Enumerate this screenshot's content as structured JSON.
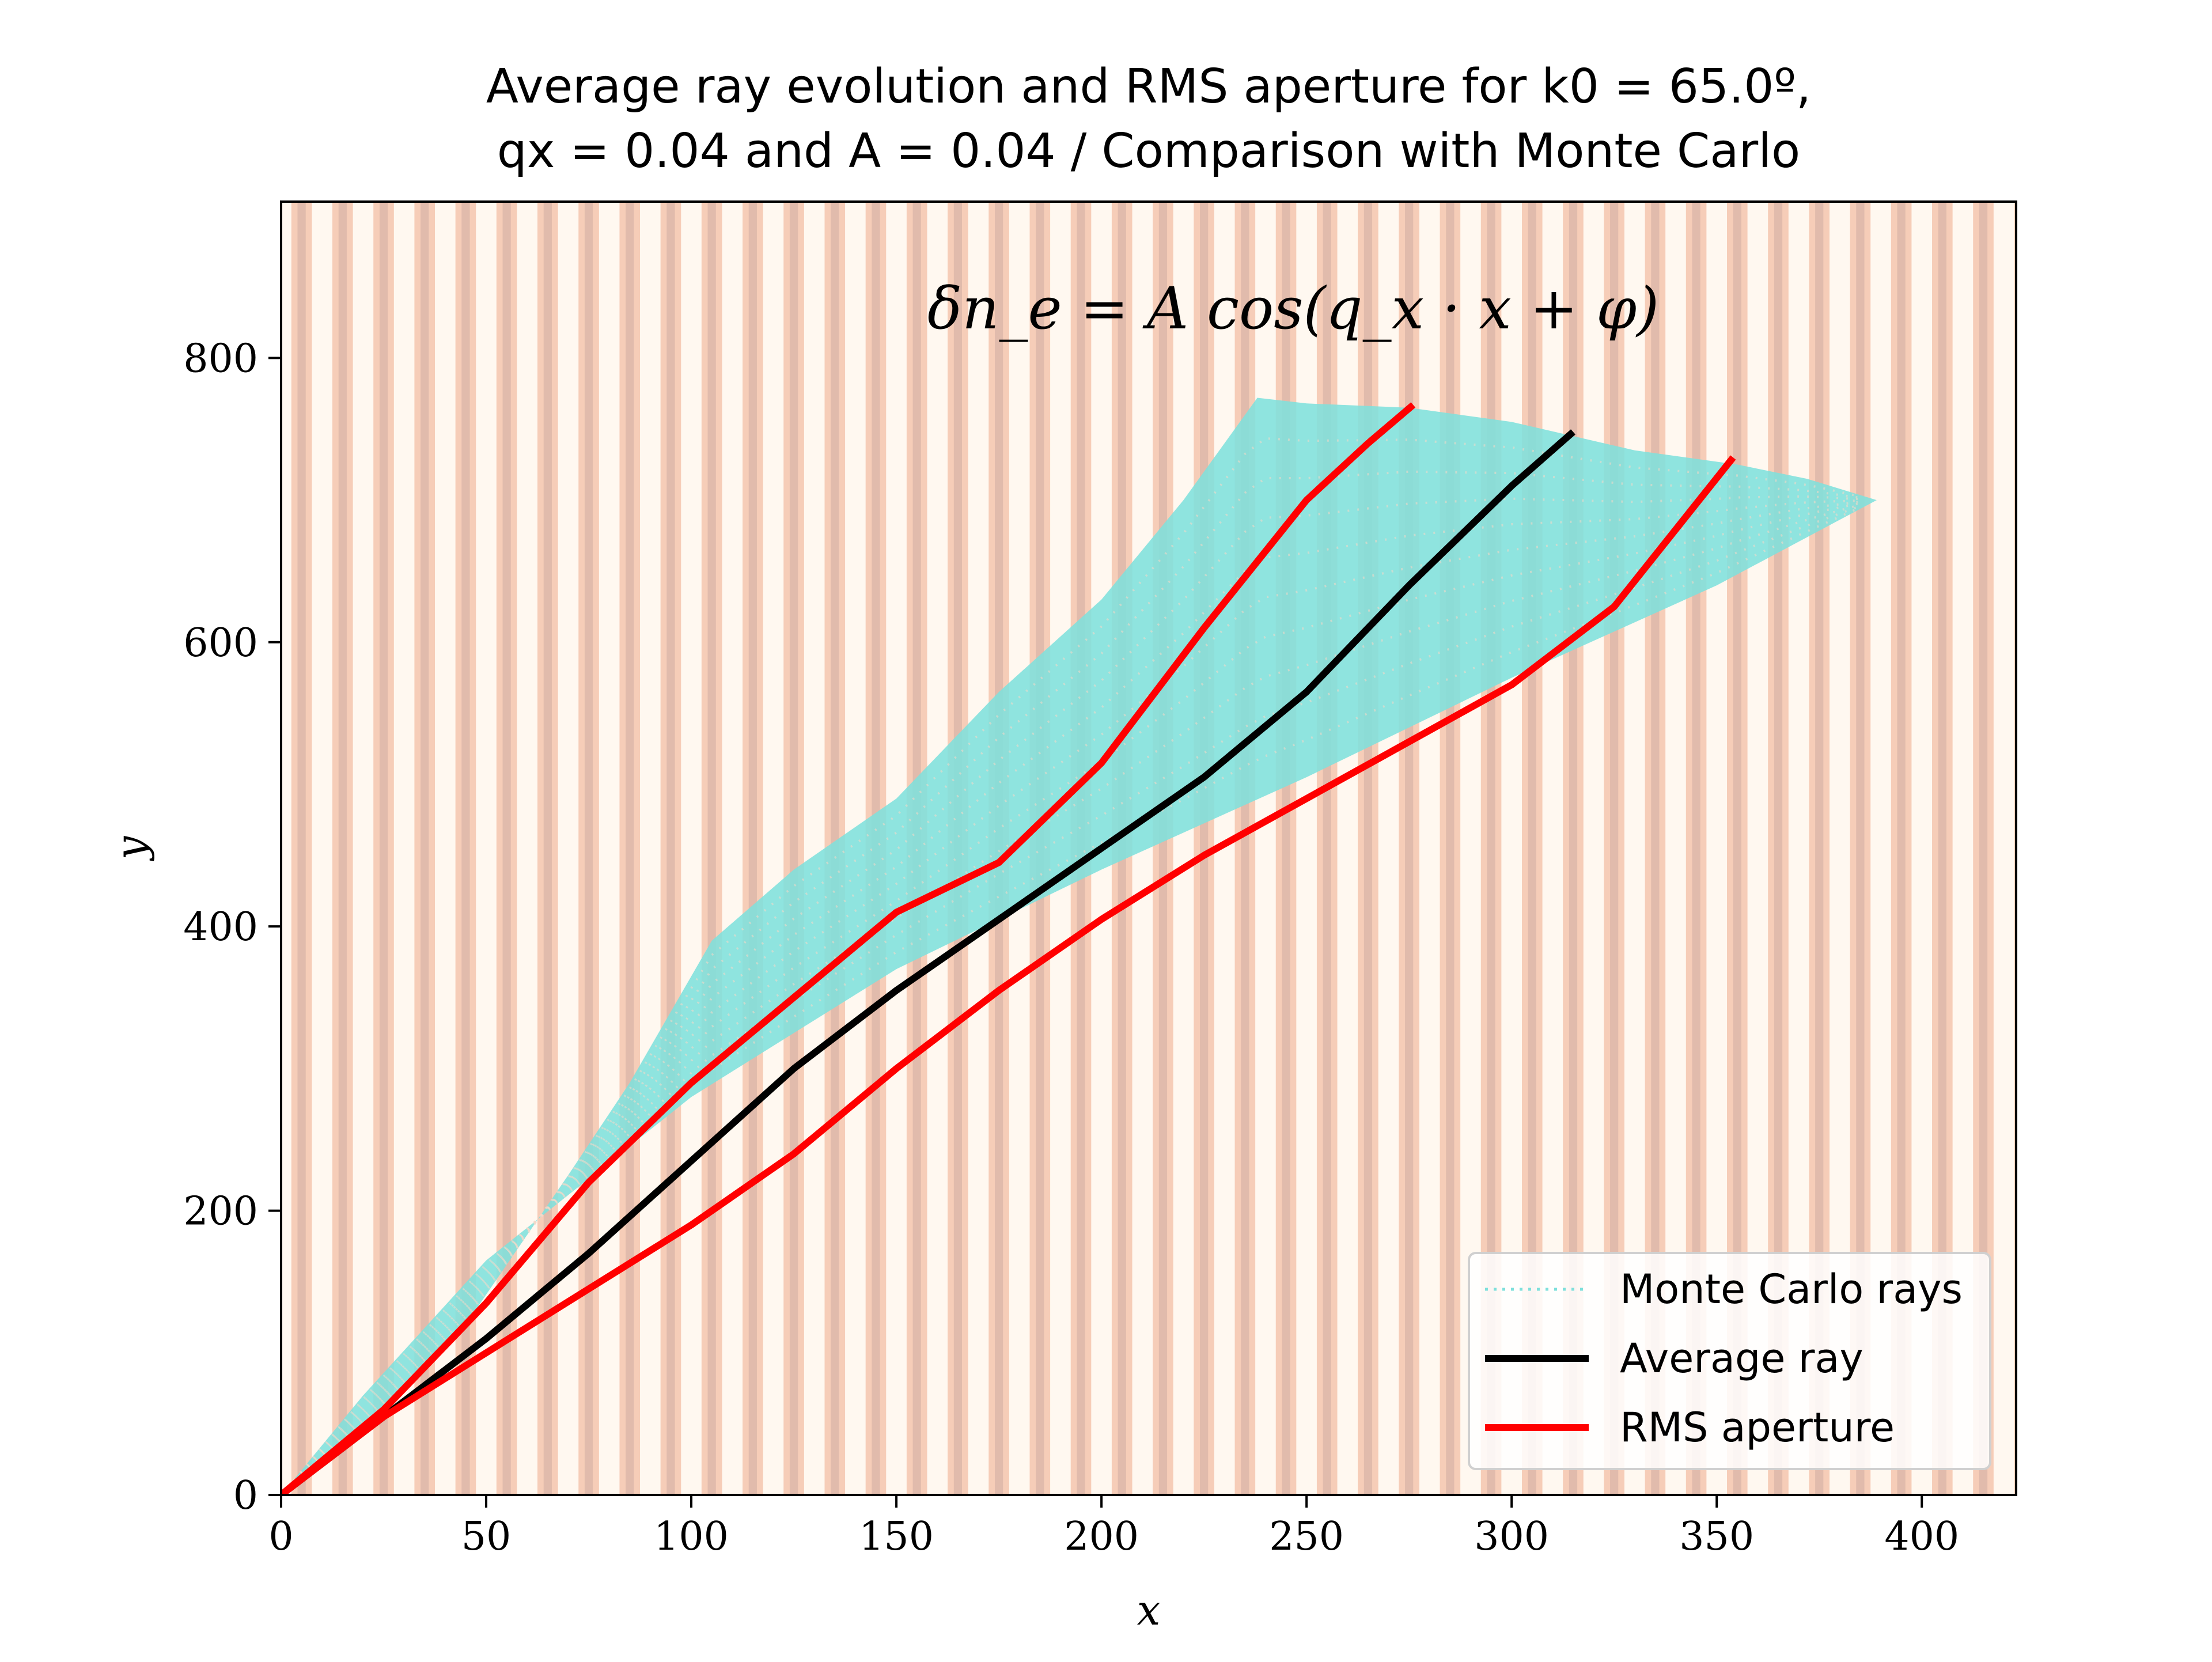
{
  "chart_data": {
    "type": "line",
    "title_line1": "Average ray evolution and RMS aperture for k0 = 65.0º,",
    "title_line2": "qx = 0.04 and A = 0.04 / Comparison with Monte Carlo",
    "annotation": "δn_e = A cos(q_x · x + φ)",
    "xlabel": "x",
    "ylabel": "y",
    "xlim": [
      0,
      423
    ],
    "ylim": [
      0,
      910
    ],
    "xticks": [
      0,
      50,
      100,
      150,
      200,
      250,
      300,
      350,
      400
    ],
    "yticks": [
      0,
      200,
      400,
      600,
      800
    ],
    "grid": false,
    "legend_position": "lower-right",
    "background": {
      "type": "stripes",
      "period_x": 10,
      "colors": [
        "#fff8f0",
        "#f6cdb8",
        "#d9b3a6"
      ]
    },
    "series": [
      {
        "name": "Monte Carlo rays",
        "style": "dotted",
        "color": "#7fe0dc",
        "envelope_upper": [
          [
            0,
            0
          ],
          [
            20,
            45
          ],
          [
            45,
            120
          ],
          [
            70,
            225
          ],
          [
            85,
            290
          ],
          [
            105,
            390
          ],
          [
            125,
            440
          ],
          [
            150,
            490
          ],
          [
            175,
            565
          ],
          [
            200,
            630
          ],
          [
            220,
            700
          ],
          [
            238,
            772
          ],
          [
            250,
            768
          ],
          [
            275,
            765
          ],
          [
            300,
            755
          ],
          [
            330,
            735
          ],
          [
            355,
            725
          ],
          [
            372,
            715
          ],
          [
            389,
            700
          ]
        ],
        "envelope_lower": [
          [
            389,
            700
          ],
          [
            350,
            640
          ],
          [
            300,
            575
          ],
          [
            250,
            505
          ],
          [
            200,
            440
          ],
          [
            150,
            370
          ],
          [
            100,
            280
          ],
          [
            50,
            165
          ],
          [
            20,
            70
          ],
          [
            0,
            0
          ]
        ]
      },
      {
        "name": "Average ray",
        "style": "solid",
        "color": "#000000",
        "x": [
          0,
          25,
          50,
          75,
          100,
          125,
          150,
          175,
          200,
          225,
          250,
          275,
          300,
          315
        ],
        "y": [
          0,
          55,
          110,
          170,
          235,
          300,
          355,
          405,
          455,
          505,
          565,
          640,
          710,
          748
        ]
      },
      {
        "name": "RMS aperture",
        "style": "solid",
        "color": "#ff0000",
        "x": [
          0,
          25,
          50,
          75,
          100,
          125,
          150,
          175,
          200,
          225,
          250,
          265,
          276
        ],
        "y": [
          0,
          60,
          135,
          220,
          290,
          350,
          410,
          445,
          515,
          610,
          700,
          740,
          767
        ]
      },
      {
        "name": "RMS aperture (lower)",
        "style": "solid",
        "color": "#ff0000",
        "x": [
          0,
          25,
          50,
          75,
          100,
          125,
          150,
          175,
          200,
          225,
          250,
          275,
          300,
          325,
          354
        ],
        "y": [
          0,
          55,
          100,
          145,
          190,
          240,
          300,
          355,
          405,
          450,
          490,
          530,
          570,
          625,
          730
        ]
      }
    ],
    "legend": [
      {
        "label": "Monte Carlo rays",
        "style": "dotted",
        "color": "#7fe0dc"
      },
      {
        "label": "Average ray",
        "style": "solid",
        "color": "#000000"
      },
      {
        "label": "RMS aperture",
        "style": "solid",
        "color": "#ff0000"
      }
    ]
  }
}
